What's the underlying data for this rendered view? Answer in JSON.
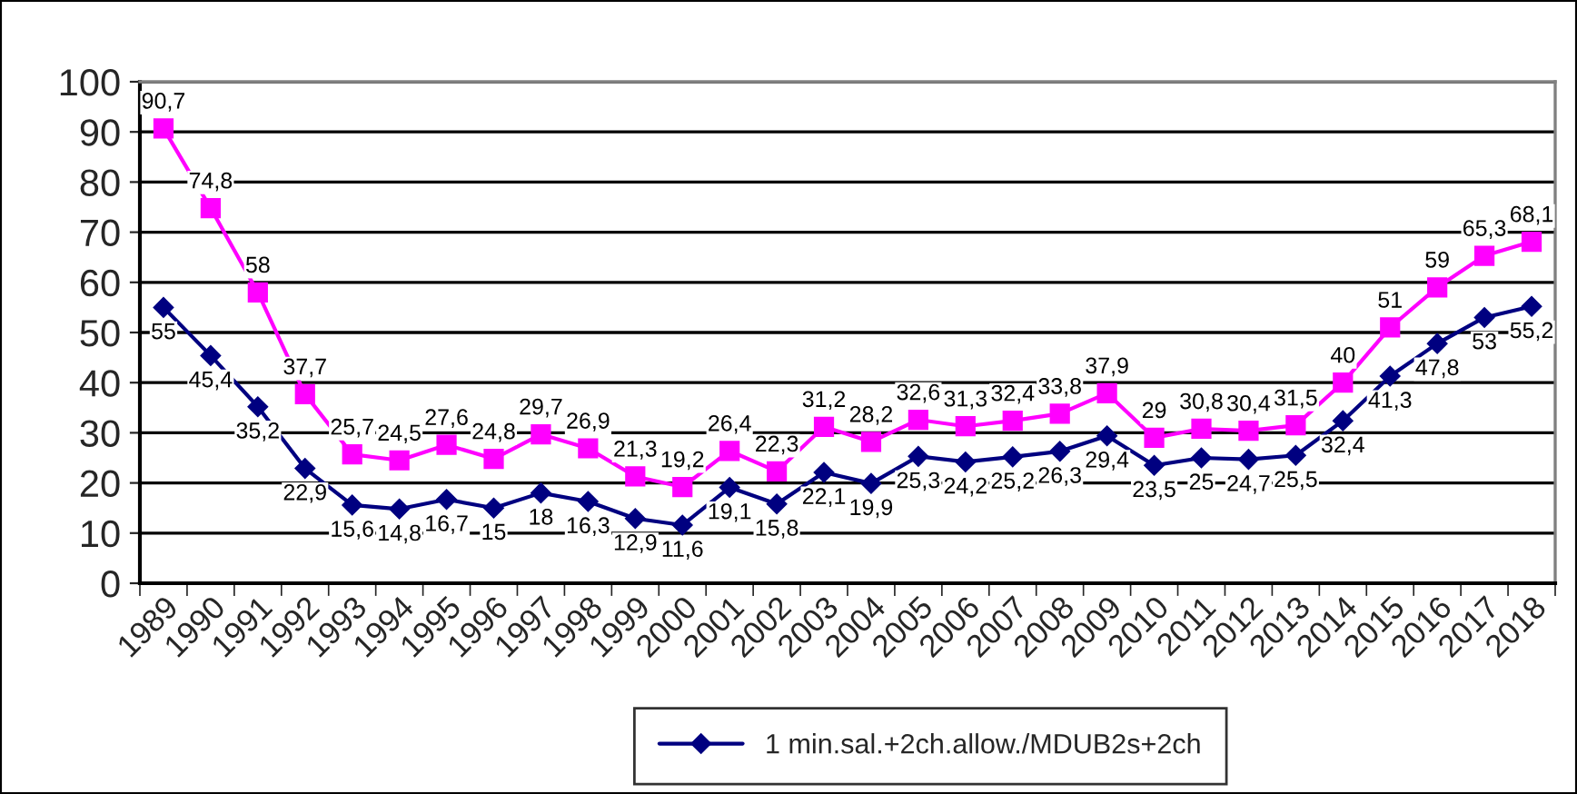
{
  "chart_data": {
    "type": "line",
    "categories": [
      "1989",
      "1990",
      "1991",
      "1992",
      "1993",
      "1994",
      "1995",
      "1996",
      "1997",
      "1998",
      "1999",
      "2000",
      "2001",
      "2002",
      "2003",
      "2004",
      "2005",
      "2006",
      "2007",
      "2008",
      "2009",
      "2010",
      "2011",
      "2012",
      "2013",
      "2014",
      "2015",
      "2016",
      "2017",
      "2018"
    ],
    "series": [
      {
        "name": "1 min.sal.+2ch.allow./MDUB2s+2ch",
        "color": "#000080",
        "marker": "diamond",
        "values": [
          55,
          45.4,
          35.2,
          22.9,
          15.6,
          14.8,
          16.7,
          15,
          18,
          16.3,
          12.9,
          11.6,
          19.1,
          15.8,
          22.1,
          19.9,
          25.3,
          24.2,
          25.2,
          26.3,
          29.4,
          23.5,
          25,
          24.7,
          25.5,
          32.4,
          41.3,
          47.8,
          53,
          55.2
        ],
        "value_labels": [
          "55",
          "45,4",
          "35,2",
          "22,9",
          "15,6",
          "14,8",
          "16,7",
          "15",
          "18",
          "16,3",
          "12,9",
          "11,6",
          "19,1",
          "15,8",
          "22,1",
          "19,9",
          "25,3",
          "24,2",
          "25,2",
          "26,3",
          "29,4",
          "23,5",
          "25",
          "24,7",
          "25,5",
          "32,4",
          "41,3",
          "47,8",
          "53",
          "55,2"
        ]
      },
      {
        "color": "#ff00ff",
        "marker": "square",
        "values": [
          90.7,
          74.8,
          58,
          37.7,
          25.7,
          24.5,
          27.6,
          24.8,
          29.7,
          26.9,
          21.3,
          19.2,
          26.4,
          22.3,
          31.2,
          28.2,
          32.6,
          31.3,
          32.4,
          33.8,
          37.9,
          29,
          30.8,
          30.4,
          31.5,
          40,
          51,
          59,
          65.3,
          68.1
        ],
        "value_labels": [
          "90,7",
          "74,8",
          "58",
          "37,7",
          "25,7",
          "24,5",
          "27,6",
          "24,8",
          "29,7",
          "26,9",
          "21,3",
          "19,2",
          "26,4",
          "22,3",
          "31,2",
          "28,2",
          "32,6",
          "31,3",
          "32,4",
          "33,8",
          "37,9",
          "29",
          "30,8",
          "30,4",
          "31,5",
          "40",
          "51",
          "59",
          "65,3",
          "68,1"
        ]
      }
    ],
    "ylim": [
      0,
      100
    ],
    "yticks": [
      0,
      10,
      20,
      30,
      40,
      50,
      60,
      70,
      80,
      90,
      100
    ],
    "grid": "y",
    "legend": "bottom",
    "line_style": "solid"
  }
}
